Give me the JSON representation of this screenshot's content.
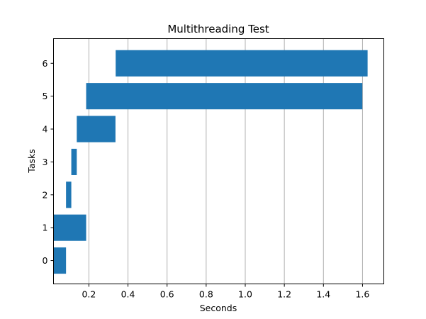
{
  "chart_data": {
    "type": "bar",
    "orientation": "horizontal",
    "style": "gantt",
    "title": "Multithreading Test",
    "xlabel": "Seconds",
    "ylabel": "Tasks",
    "categories": [
      "0",
      "1",
      "2",
      "3",
      "4",
      "5",
      "6"
    ],
    "series": [
      {
        "name": "tasks",
        "color": "#1f77b4",
        "start": [
          0.019,
          0.019,
          0.083,
          0.11,
          0.138,
          0.186,
          0.337
        ],
        "end": [
          0.083,
          0.186,
          0.11,
          0.138,
          0.336,
          1.599,
          1.626
        ],
        "values": [
          0.064,
          0.167,
          0.027,
          0.028,
          0.198,
          1.413,
          1.289
        ]
      }
    ],
    "bar_height": 0.8,
    "xlim": [
      0.019,
      1.709
    ],
    "ylim": [
      -0.71,
      6.75
    ],
    "xticks": [
      0.2,
      0.4,
      0.6,
      0.8,
      1.0,
      1.2,
      1.4,
      1.6
    ],
    "xtick_labels": [
      "0.2",
      "0.4",
      "0.6",
      "0.8",
      "1.0",
      "1.2",
      "1.4",
      "1.6"
    ],
    "yticks": [
      0,
      1,
      2,
      3,
      4,
      5,
      6
    ],
    "ytick_labels": [
      "0",
      "1",
      "2",
      "3",
      "4",
      "5",
      "6"
    ],
    "grid": {
      "x": true,
      "y": false,
      "color": "#b0b0b0"
    },
    "legend": null
  }
}
